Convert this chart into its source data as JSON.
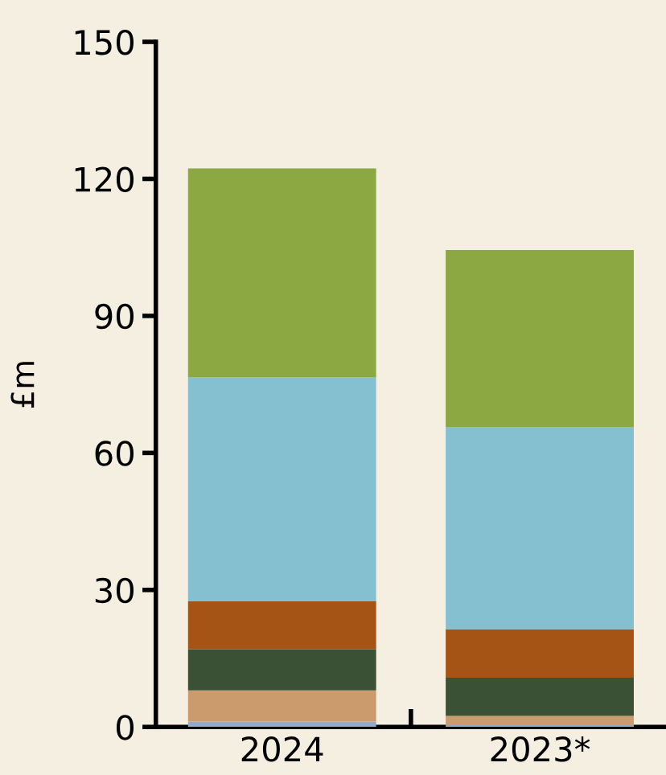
{
  "chart_data": {
    "type": "bar",
    "stacked": true,
    "ylabel": "£m",
    "categories": [
      "2024",
      "2023*"
    ],
    "series": [
      {
        "color": "#94a9c9",
        "values": [
          1.2,
          0.4
        ]
      },
      {
        "color": "#cb9b6e",
        "values": [
          6.8,
          2.0
        ]
      },
      {
        "color": "#3a5135",
        "values": [
          9.0,
          8.4
        ]
      },
      {
        "color": "#a65416",
        "values": [
          10.5,
          10.6
        ]
      },
      {
        "color": "#85c0d0",
        "values": [
          49.0,
          44.2
        ]
      },
      {
        "color": "#8ba843",
        "values": [
          45.8,
          38.8
        ]
      }
    ],
    "ylim": [
      0,
      150
    ],
    "yticks": [
      0,
      30,
      60,
      90,
      120,
      150
    ],
    "grid": false,
    "legend": false
  }
}
